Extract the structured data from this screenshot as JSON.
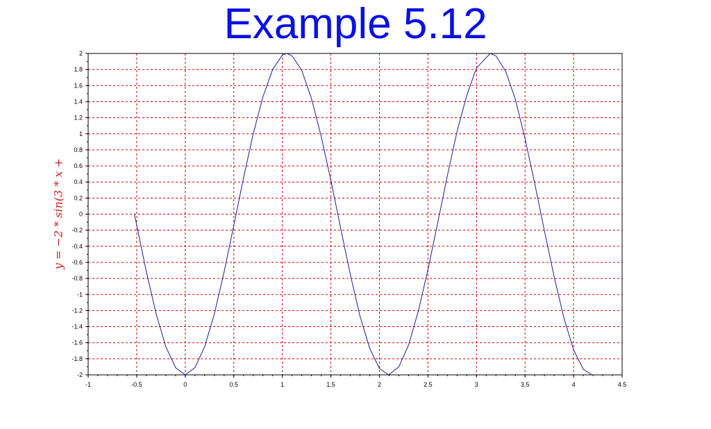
{
  "chart_data": {
    "type": "line",
    "title": "Example 5.12",
    "xlabel": "",
    "ylabel": "y = −2 * sin(3 * x +",
    "xlim": [
      -1,
      4.5
    ],
    "ylim": [
      -2,
      2
    ],
    "x_ticks": [
      "-1",
      "-0.5",
      "0",
      "0.5",
      "1",
      "1.5",
      "2",
      "2.5",
      "3",
      "3.5",
      "4",
      "4.5"
    ],
    "y_ticks": [
      "-2",
      "-1.8",
      "-1.6",
      "-1.4",
      "-1.2",
      "-1",
      "-0.8",
      "-0.6",
      "-0.4",
      "-0.2",
      "0",
      "0.2",
      "0.4",
      "0.6",
      "0.8",
      "1",
      "1.2",
      "1.4",
      "1.6",
      "1.8",
      "2"
    ],
    "grid": true,
    "series": [
      {
        "x": [
          -0.5236,
          -0.4,
          -0.3,
          -0.2,
          -0.1,
          0,
          0.1,
          0.2,
          0.3,
          0.4,
          0.5,
          0.6,
          0.7,
          0.8,
          0.9,
          1.0,
          1.0472,
          1.1,
          1.2,
          1.3,
          1.4,
          1.5,
          1.6,
          1.7,
          1.8,
          1.9,
          2.0,
          2.0944,
          2.2,
          2.3,
          2.4,
          2.5,
          2.6,
          2.7,
          2.8,
          2.9,
          3.0,
          3.1416,
          3.2,
          3.3,
          3.4,
          3.5,
          3.6,
          3.7,
          3.8,
          3.9,
          4.0,
          4.1,
          4.1888
        ],
        "y": [
          0,
          -0.72,
          -1.24,
          -1.65,
          -1.91,
          -2,
          -1.91,
          -1.65,
          -1.24,
          -0.72,
          -0.14,
          0.45,
          1.0,
          1.46,
          1.8,
          1.98,
          2,
          1.97,
          1.79,
          1.44,
          0.97,
          0.42,
          -0.17,
          -0.75,
          -1.27,
          -1.67,
          -1.92,
          -2,
          -1.9,
          -1.63,
          -1.21,
          -0.69,
          -0.11,
          0.48,
          1.03,
          1.48,
          1.82,
          2,
          1.97,
          1.78,
          1.43,
          0.94,
          0.38,
          -0.21,
          -0.78,
          -1.29,
          -1.69,
          -1.93,
          -2
        ],
        "color": "#1a1a9a"
      }
    ],
    "grid_color": "#cc0000",
    "axis_color": "#000000"
  }
}
